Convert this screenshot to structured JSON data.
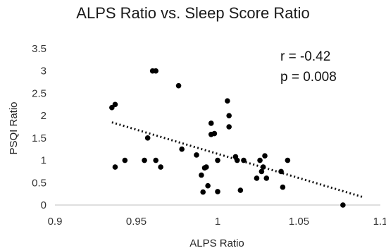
{
  "chart_data": {
    "type": "scatter",
    "title": "ALPS Ratio vs. Sleep Score Ratio",
    "xlabel": "ALPS Ratio",
    "ylabel": "PSQI Ratio",
    "xlim": [
      0.9,
      1.1
    ],
    "ylim": [
      0,
      3.5
    ],
    "x_ticks": [
      "0.9",
      "0.95",
      "1",
      "1.05",
      "1.1"
    ],
    "y_ticks": [
      "0",
      "0.5",
      "1",
      "1.5",
      "2",
      "2.5",
      "3",
      "3.5"
    ],
    "grid": false,
    "points": [
      {
        "x": 0.935,
        "y": 2.18
      },
      {
        "x": 0.937,
        "y": 2.25
      },
      {
        "x": 0.937,
        "y": 0.85
      },
      {
        "x": 0.943,
        "y": 1.0
      },
      {
        "x": 0.955,
        "y": 1.0
      },
      {
        "x": 0.957,
        "y": 1.5
      },
      {
        "x": 0.96,
        "y": 3.0
      },
      {
        "x": 0.962,
        "y": 3.0
      },
      {
        "x": 0.962,
        "y": 1.0
      },
      {
        "x": 0.965,
        "y": 0.85
      },
      {
        "x": 0.976,
        "y": 2.67
      },
      {
        "x": 0.978,
        "y": 1.25
      },
      {
        "x": 0.987,
        "y": 1.12
      },
      {
        "x": 0.99,
        "y": 0.67
      },
      {
        "x": 0.991,
        "y": 0.29
      },
      {
        "x": 0.992,
        "y": 0.83
      },
      {
        "x": 0.993,
        "y": 0.85
      },
      {
        "x": 0.994,
        "y": 0.43
      },
      {
        "x": 0.996,
        "y": 1.58
      },
      {
        "x": 0.996,
        "y": 1.83
      },
      {
        "x": 0.998,
        "y": 1.6
      },
      {
        "x": 1.0,
        "y": 1.0
      },
      {
        "x": 1.0,
        "y": 0.3
      },
      {
        "x": 1.006,
        "y": 2.33
      },
      {
        "x": 1.007,
        "y": 1.75
      },
      {
        "x": 1.007,
        "y": 2.0
      },
      {
        "x": 1.011,
        "y": 1.08
      },
      {
        "x": 1.012,
        "y": 1.0
      },
      {
        "x": 1.014,
        "y": 0.33
      },
      {
        "x": 1.016,
        "y": 1.0
      },
      {
        "x": 1.024,
        "y": 0.6
      },
      {
        "x": 1.026,
        "y": 1.0
      },
      {
        "x": 1.027,
        "y": 0.75
      },
      {
        "x": 1.028,
        "y": 0.85
      },
      {
        "x": 1.029,
        "y": 1.1
      },
      {
        "x": 1.03,
        "y": 0.6
      },
      {
        "x": 1.039,
        "y": 0.75
      },
      {
        "x": 1.04,
        "y": 0.4
      },
      {
        "x": 1.043,
        "y": 1.0
      },
      {
        "x": 1.077,
        "y": 0.0
      }
    ],
    "trendline": {
      "style": "dotted",
      "x": [
        0.935,
        1.09
      ],
      "y": [
        1.85,
        0.17
      ]
    },
    "annotations": [
      "r = -0.42",
      "p = 0.008"
    ]
  }
}
